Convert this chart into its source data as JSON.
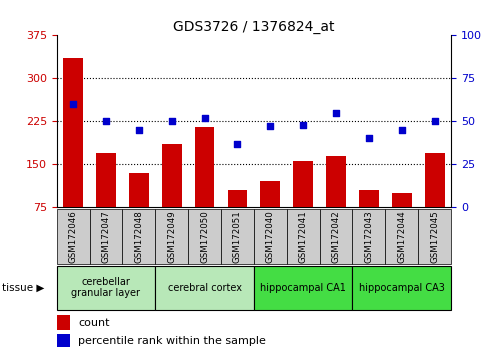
{
  "title": "GDS3726 / 1376824_at",
  "samples": [
    "GSM172046",
    "GSM172047",
    "GSM172048",
    "GSM172049",
    "GSM172050",
    "GSM172051",
    "GSM172040",
    "GSM172041",
    "GSM172042",
    "GSM172043",
    "GSM172044",
    "GSM172045"
  ],
  "counts": [
    335,
    170,
    135,
    185,
    215,
    105,
    120,
    155,
    165,
    105,
    100,
    170
  ],
  "percentiles": [
    60,
    50,
    45,
    50,
    52,
    37,
    47,
    48,
    55,
    40,
    45,
    50
  ],
  "ylim_left": [
    75,
    375
  ],
  "ylim_right": [
    0,
    100
  ],
  "yticks_left": [
    75,
    150,
    225,
    300,
    375
  ],
  "yticks_right": [
    0,
    25,
    50,
    75,
    100
  ],
  "bar_color": "#cc0000",
  "dot_color": "#0000cc",
  "grid_color": "#000000",
  "tissue_groups": [
    {
      "label": "cerebellar\ngranular layer",
      "start": 0,
      "end": 3,
      "color": "#b8e8b8"
    },
    {
      "label": "cerebral cortex",
      "start": 3,
      "end": 6,
      "color": "#b8e8b8"
    },
    {
      "label": "hippocampal CA1",
      "start": 6,
      "end": 9,
      "color": "#44dd44"
    },
    {
      "label": "hippocampal CA3",
      "start": 9,
      "end": 12,
      "color": "#44dd44"
    }
  ],
  "tissue_label": "tissue",
  "legend_count_label": "count",
  "legend_pct_label": "percentile rank within the sample",
  "bg_color": "#ffffff",
  "xtick_bg_color": "#cccccc"
}
